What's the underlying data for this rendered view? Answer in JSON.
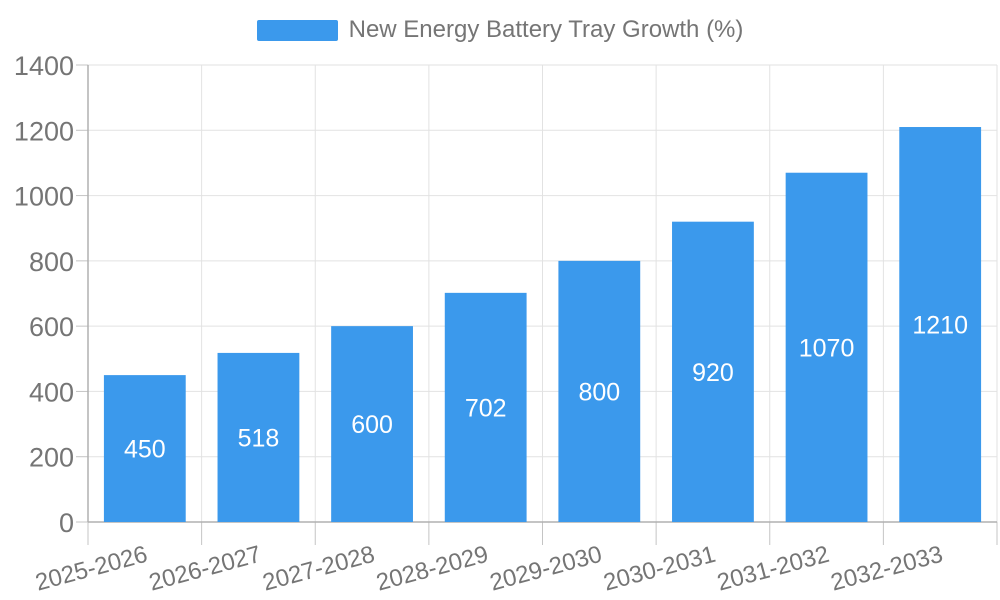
{
  "chart_data": {
    "type": "bar",
    "title": "New Energy Battery Tray Growth (%)",
    "categories": [
      "2025-2026",
      "2026-2027",
      "2027-2028",
      "2028-2029",
      "2029-2030",
      "2030-2031",
      "2031-2032",
      "2032-2033"
    ],
    "series": [
      {
        "name": "New Energy Battery Tray Growth (%)",
        "values": [
          450,
          518,
          600,
          702,
          800,
          920,
          1070,
          1210
        ]
      }
    ],
    "xlabel": "",
    "ylabel": "",
    "ylim": [
      0,
      1400
    ],
    "y_ticks": [
      0,
      200,
      400,
      600,
      800,
      1000,
      1200,
      1400
    ],
    "grid": true,
    "legend_position": "top",
    "x_label_rotation_deg": -15,
    "colors": {
      "bar": "#3b99ec",
      "axis_text": "#757575",
      "value_label": "#ffffff",
      "grid_line": "#e2e2e2",
      "axis_line": "#b0b0b0",
      "tick_line": "#c4c4c4",
      "background": "#ffffff"
    }
  }
}
